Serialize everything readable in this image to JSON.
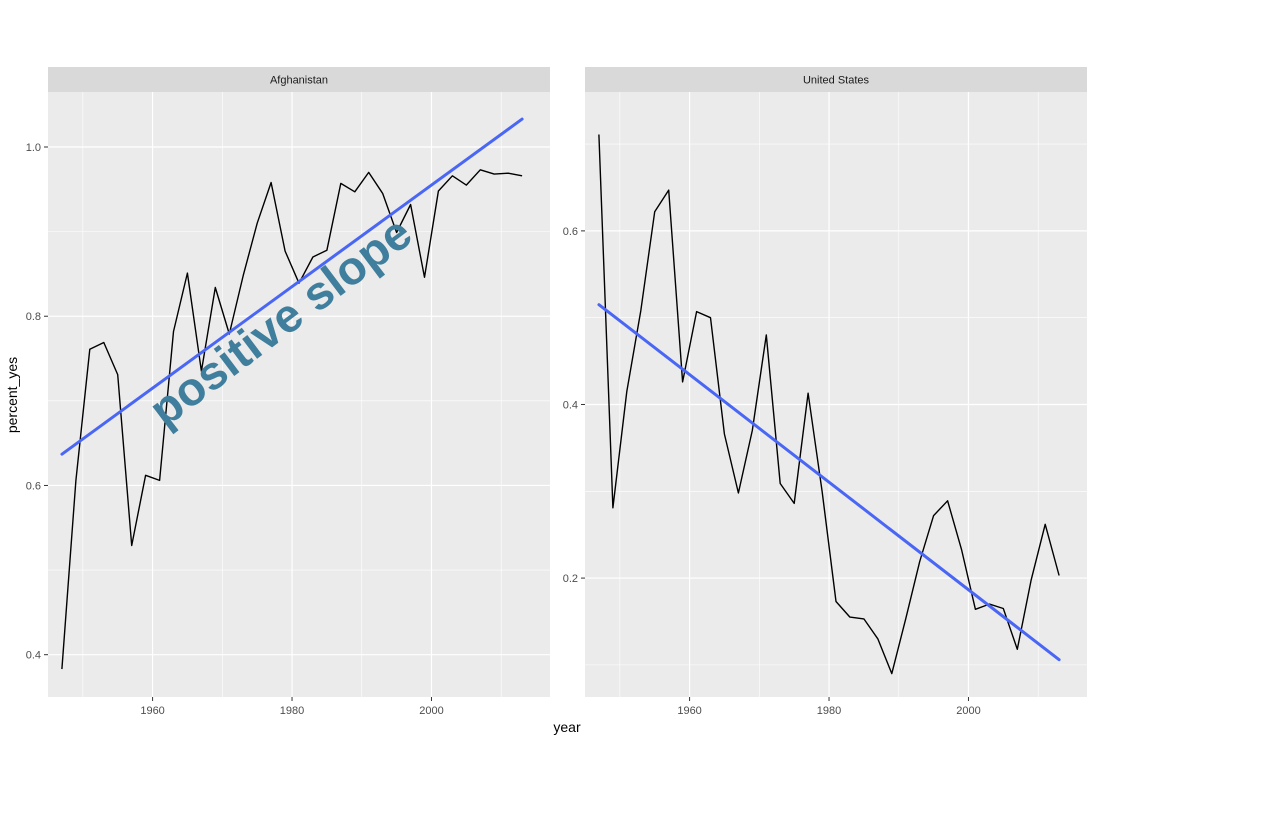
{
  "chart_data": {
    "type": "line",
    "xlabel": "year",
    "ylabel": "percent_yes",
    "annotation": "positive slope",
    "colors": {
      "panel_bg": "#EBEBEB",
      "strip_bg": "#D9D9D9",
      "grid": "#FFFFFF",
      "line": "#000000",
      "trend": "#4A66F5",
      "annotation": "#3F7E9C",
      "axis_text": "#4D4D4D"
    },
    "panels": [
      {
        "title": "Afghanistan",
        "xlim": [
          1945,
          2017
        ],
        "ylim": [
          0.35,
          1.065
        ],
        "x_ticks": [
          1960,
          1980,
          2000
        ],
        "y_ticks": [
          0.4,
          0.6,
          0.8,
          1.0
        ],
        "y_tick_labels": [
          "0.4",
          "0.6",
          "0.8",
          "1.0"
        ],
        "x": [
          1947,
          1949,
          1951,
          1953,
          1955,
          1957,
          1959,
          1961,
          1963,
          1965,
          1967,
          1969,
          1971,
          1973,
          1975,
          1977,
          1979,
          1981,
          1983,
          1985,
          1987,
          1989,
          1991,
          1993,
          1995,
          1997,
          1999,
          2001,
          2003,
          2005,
          2007,
          2009,
          2011,
          2013
        ],
        "y": [
          0.383,
          0.606,
          0.761,
          0.769,
          0.731,
          0.529,
          0.612,
          0.606,
          0.782,
          0.851,
          0.735,
          0.834,
          0.779,
          0.848,
          0.91,
          0.958,
          0.877,
          0.839,
          0.87,
          0.878,
          0.957,
          0.947,
          0.97,
          0.945,
          0.899,
          0.932,
          0.846,
          0.948,
          0.966,
          0.955,
          0.973,
          0.968,
          0.969,
          0.966
        ],
        "trend": {
          "x": [
            1947,
            2013
          ],
          "y": [
            0.637,
            1.033
          ]
        }
      },
      {
        "title": "United States",
        "xlim": [
          1945,
          2017
        ],
        "ylim": [
          0.063,
          0.76
        ],
        "x_ticks": [
          1960,
          1980,
          2000
        ],
        "y_ticks": [
          0.2,
          0.4,
          0.6
        ],
        "y_tick_labels": [
          "0.2",
          "0.4",
          "0.6"
        ],
        "x": [
          1947,
          1949,
          1951,
          1953,
          1955,
          1957,
          1959,
          1961,
          1963,
          1965,
          1967,
          1969,
          1971,
          1973,
          1975,
          1977,
          1979,
          1981,
          1983,
          1985,
          1987,
          1989,
          1991,
          1993,
          1995,
          1997,
          1999,
          2001,
          2003,
          2005,
          2007,
          2009,
          2011,
          2013
        ],
        "y": [
          0.711,
          0.281,
          0.415,
          0.508,
          0.622,
          0.647,
          0.426,
          0.507,
          0.5,
          0.366,
          0.298,
          0.37,
          0.48,
          0.309,
          0.286,
          0.413,
          0.3,
          0.173,
          0.155,
          0.153,
          0.13,
          0.09,
          0.153,
          0.219,
          0.272,
          0.289,
          0.233,
          0.164,
          0.17,
          0.165,
          0.118,
          0.198,
          0.262,
          0.203
        ],
        "trend": {
          "x": [
            1947,
            2013
          ],
          "y": [
            0.515,
            0.106
          ]
        }
      }
    ]
  }
}
